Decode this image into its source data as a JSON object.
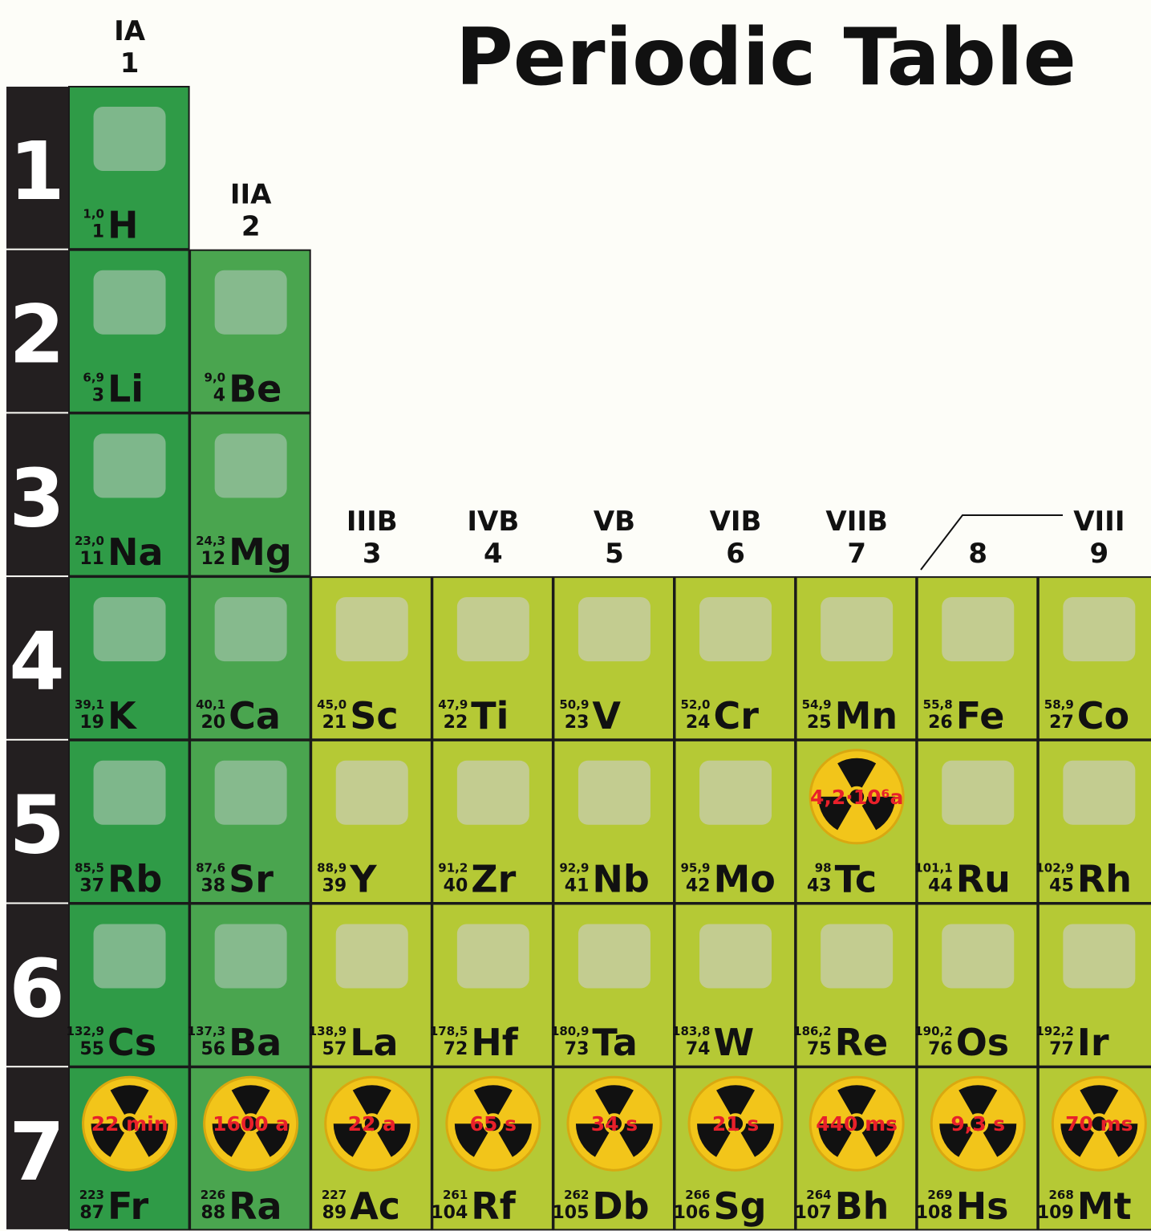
{
  "title": "Periodic Table",
  "groups": [
    {
      "roman": "IA",
      "number": 1
    },
    {
      "roman": "IIA",
      "number": 2
    },
    {
      "roman": "IIIB",
      "number": 3
    },
    {
      "roman": "IVB",
      "number": 4
    },
    {
      "roman": "VB",
      "number": 5
    },
    {
      "roman": "VIB",
      "number": 6
    },
    {
      "roman": "VIIB",
      "number": 7
    },
    {
      "number": 8
    },
    {
      "roman": "VIII",
      "number": 9
    }
  ],
  "periods": [
    {
      "label": 1,
      "elements": [
        {
          "symbol": "H",
          "number": 1,
          "mass": "1,0"
        }
      ]
    },
    {
      "label": 2,
      "elements": [
        {
          "symbol": "Li",
          "number": 3,
          "mass": "6,9"
        },
        {
          "symbol": "Be",
          "number": 4,
          "mass": "9,0"
        }
      ]
    },
    {
      "label": 3,
      "elements": [
        {
          "symbol": "Na",
          "number": 11,
          "mass": "23,0"
        },
        {
          "symbol": "Mg",
          "number": 12,
          "mass": "24,3"
        }
      ]
    },
    {
      "label": 4,
      "elements": [
        {
          "symbol": "K",
          "number": 19,
          "mass": "39,1"
        },
        {
          "symbol": "Ca",
          "number": 20,
          "mass": "40,1"
        },
        {
          "symbol": "Sc",
          "number": 21,
          "mass": "45,0"
        },
        {
          "symbol": "Ti",
          "number": 22,
          "mass": "47,9"
        },
        {
          "symbol": "V",
          "number": 23,
          "mass": "50,9"
        },
        {
          "symbol": "Cr",
          "number": 24,
          "mass": "52,0"
        },
        {
          "symbol": "Mn",
          "number": 25,
          "mass": "54,9"
        },
        {
          "symbol": "Fe",
          "number": 26,
          "mass": "55,8"
        },
        {
          "symbol": "Co",
          "number": 27,
          "mass": "58,9"
        }
      ]
    },
    {
      "label": 5,
      "elements": [
        {
          "symbol": "Rb",
          "number": 37,
          "mass": "85,5"
        },
        {
          "symbol": "Sr",
          "number": 38,
          "mass": "87,6"
        },
        {
          "symbol": "Y",
          "number": 39,
          "mass": "88,9"
        },
        {
          "symbol": "Zr",
          "number": 40,
          "mass": "91,2"
        },
        {
          "symbol": "Nb",
          "number": 41,
          "mass": "92,9"
        },
        {
          "symbol": "Mo",
          "number": 42,
          "mass": "95,9"
        },
        {
          "symbol": "Tc",
          "number": 43,
          "mass": "98",
          "half_life": "4,2·10⁶a"
        },
        {
          "symbol": "Ru",
          "number": 44,
          "mass": "101,1"
        },
        {
          "symbol": "Rh",
          "number": 45,
          "mass": "102,9"
        }
      ]
    },
    {
      "label": 6,
      "elements": [
        {
          "symbol": "Cs",
          "number": 55,
          "mass": "132,9"
        },
        {
          "symbol": "Ba",
          "number": 56,
          "mass": "137,3"
        },
        {
          "symbol": "La",
          "number": 57,
          "mass": "138,9"
        },
        {
          "symbol": "Hf",
          "number": 72,
          "mass": "178,5"
        },
        {
          "symbol": "Ta",
          "number": 73,
          "mass": "180,9"
        },
        {
          "symbol": "W",
          "number": 74,
          "mass": "183,8"
        },
        {
          "symbol": "Re",
          "number": 75,
          "mass": "186,2"
        },
        {
          "symbol": "Os",
          "number": 76,
          "mass": "190,2"
        },
        {
          "symbol": "Ir",
          "number": 77,
          "mass": "192,2"
        }
      ]
    },
    {
      "label": 7,
      "elements": [
        {
          "symbol": "Fr",
          "number": 87,
          "mass": "223",
          "half_life": "22 min"
        },
        {
          "symbol": "Ra",
          "number": 88,
          "mass": "226",
          "half_life": "1600 a"
        },
        {
          "symbol": "Ac",
          "number": 89,
          "mass": "227",
          "half_life": "22 a"
        },
        {
          "symbol": "Rf",
          "number": 104,
          "mass": "261",
          "half_life": "65 s"
        },
        {
          "symbol": "Db",
          "number": 105,
          "mass": "262",
          "half_life": "34 s"
        },
        {
          "symbol": "Sg",
          "number": 106,
          "mass": "266",
          "half_life": "21 s"
        },
        {
          "symbol": "Bh",
          "number": 107,
          "mass": "264",
          "half_life": "440 ms"
        },
        {
          "symbol": "Hs",
          "number": 108,
          "mass": "269",
          "half_life": "9,3 s"
        },
        {
          "symbol": "Mt",
          "number": 109,
          "mass": "268",
          "half_life": "70 ms"
        }
      ]
    }
  ]
}
